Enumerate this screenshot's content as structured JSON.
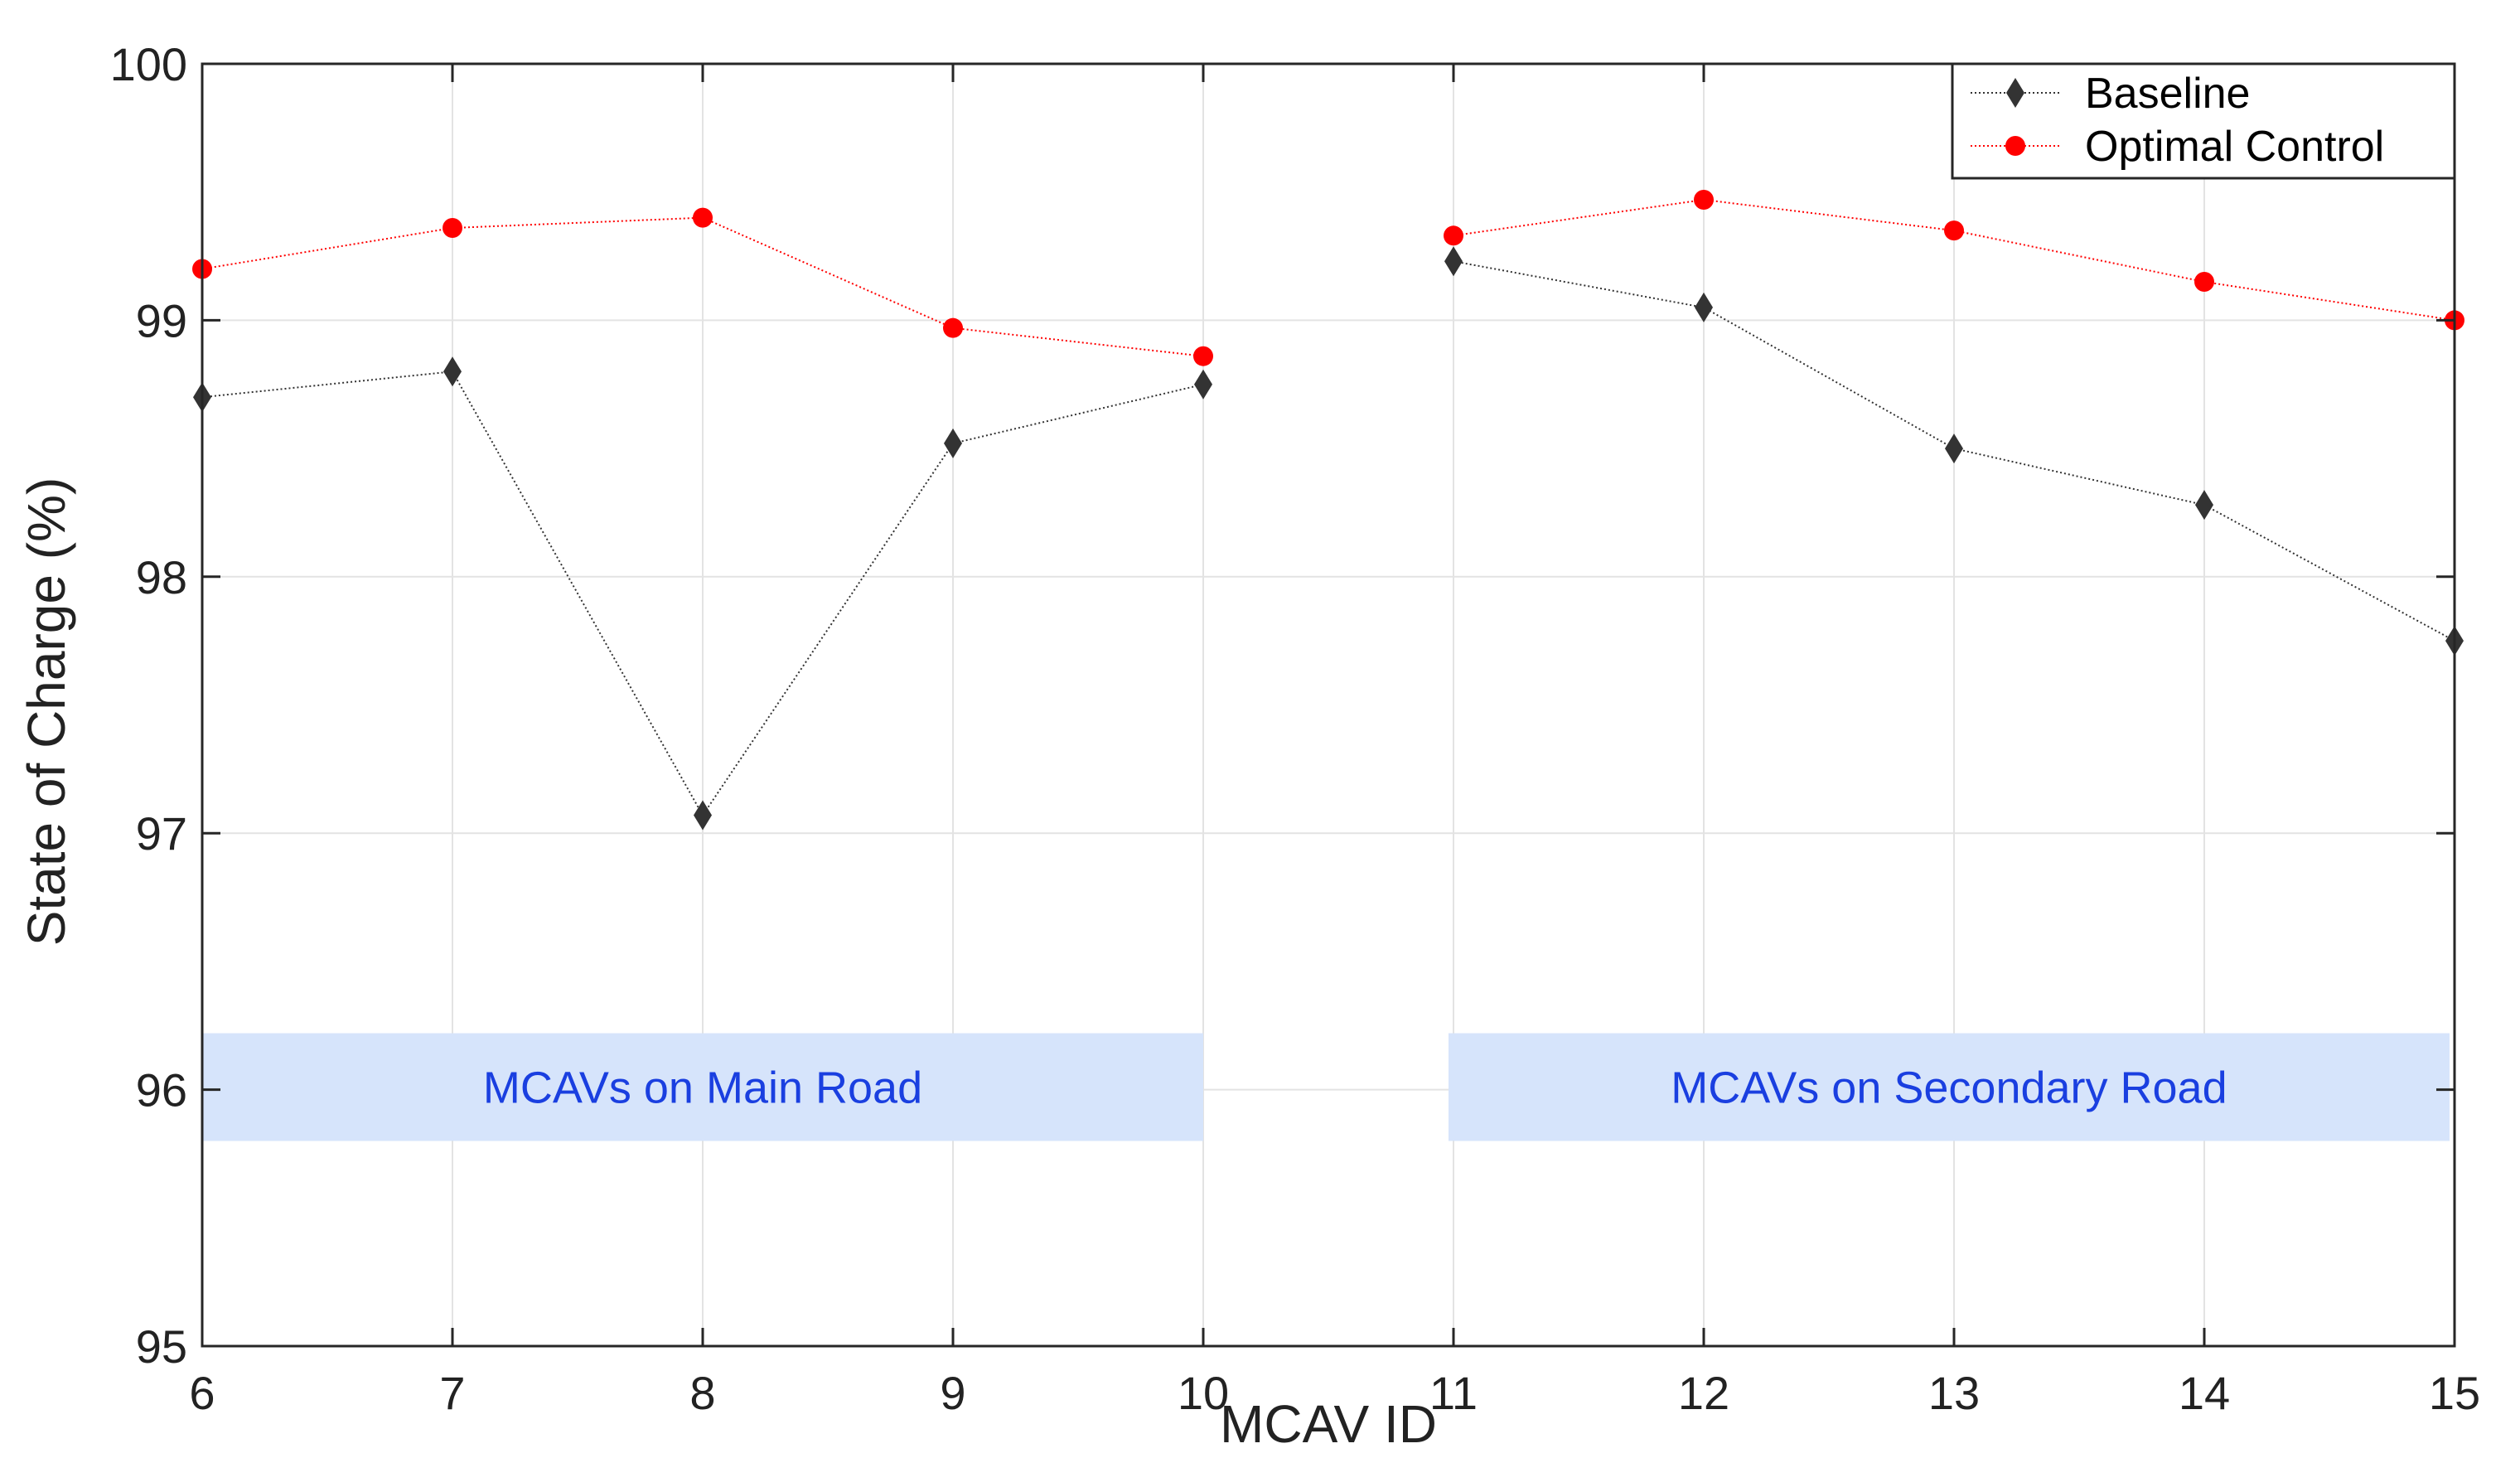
{
  "chart_data": {
    "type": "line",
    "xlabel": "MCAV ID",
    "ylabel": "State of Charge (%)",
    "xlim": [
      6,
      15
    ],
    "ylim": [
      95,
      100
    ],
    "x_ticks": [
      "6",
      "7",
      "8",
      "9",
      "10",
      "11",
      "12",
      "13",
      "14",
      "15"
    ],
    "y_ticks": [
      "95",
      "96",
      "97",
      "98",
      "99",
      "100"
    ],
    "grid": true,
    "legend_position": "top-right",
    "series": [
      {
        "name": "Baseline",
        "color": "#333333",
        "marker": "diamond",
        "segments": [
          {
            "x": [
              6,
              7,
              8,
              9,
              10
            ],
            "y": [
              98.7,
              98.8,
              97.07,
              98.52,
              98.75
            ]
          },
          {
            "x": [
              11,
              12,
              13,
              14,
              15
            ],
            "y": [
              99.23,
              99.05,
              98.5,
              98.28,
              97.75
            ]
          }
        ]
      },
      {
        "name": "Optimal Control",
        "color": "#ff0000",
        "marker": "circle",
        "segments": [
          {
            "x": [
              6,
              7,
              8,
              9,
              10
            ],
            "y": [
              99.2,
              99.36,
              99.4,
              98.97,
              98.86
            ]
          },
          {
            "x": [
              11,
              12,
              13,
              14,
              15
            ],
            "y": [
              99.33,
              99.47,
              99.35,
              99.15,
              99.0
            ]
          }
        ]
      }
    ],
    "annotations": [
      {
        "text": "MCAVs on Main Road",
        "x_from": 6,
        "x_to": 10,
        "y_from": 95.8,
        "y_to": 96.22
      },
      {
        "text": "MCAVs on Secondary Road",
        "x_from": 10.98,
        "x_to": 14.98,
        "y_from": 95.8,
        "y_to": 96.22
      }
    ],
    "annotation_fill": "#d6e4fb",
    "annotation_text_color": "#1a3fe0"
  }
}
